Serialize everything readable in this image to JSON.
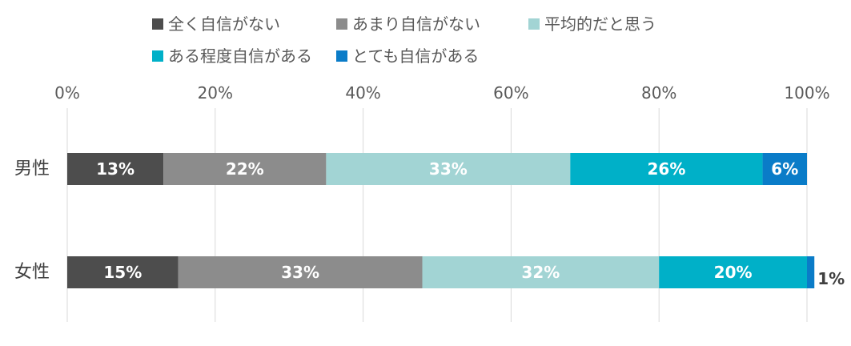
{
  "chart_data": {
    "type": "bar",
    "orientation": "horizontal",
    "stacked": "percent",
    "categories": [
      "男性",
      "女性"
    ],
    "series": [
      {
        "name": "全く自信がない",
        "color": "#4d4d4d",
        "values": [
          13,
          15
        ],
        "labels": [
          "13%",
          "15%"
        ],
        "label_color": "#ffffff"
      },
      {
        "name": "あまり自信がない",
        "color": "#8c8c8c",
        "values": [
          22,
          33
        ],
        "labels": [
          "22%",
          "33%"
        ],
        "label_color": "#ffffff"
      },
      {
        "name": "平均的だと思う",
        "color": "#a2d4d4",
        "values": [
          33,
          32
        ],
        "labels": [
          "33%",
          "32%"
        ],
        "label_color": "#ffffff"
      },
      {
        "name": "ある程度自信がある",
        "color": "#00b0c8",
        "values": [
          26,
          20
        ],
        "labels": [
          "26%",
          "20%"
        ],
        "label_color": "#ffffff"
      },
      {
        "name": "とても自信がある",
        "color": "#0a7cc8",
        "values": [
          6,
          1
        ],
        "labels": [
          "6%",
          "1%"
        ],
        "label_color": "#ffffff"
      }
    ],
    "x_ticks": [
      "0%",
      "20%",
      "40%",
      "60%",
      "80%",
      "100%"
    ],
    "xlim": [
      0,
      100
    ],
    "x_axis_position": "top",
    "grid": "vertical",
    "legend_position": "top"
  }
}
